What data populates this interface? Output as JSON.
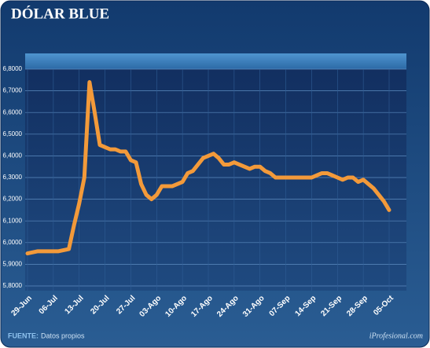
{
  "chart_data": {
    "type": "line",
    "title": "DÓLAR BLUE",
    "categories": [
      "29-Jun",
      null,
      null,
      null,
      null,
      "06-Jul",
      null,
      null,
      null,
      null,
      "13-Jul",
      null,
      null,
      null,
      null,
      "20-Jul",
      null,
      null,
      null,
      null,
      "27-Jul",
      null,
      null,
      null,
      null,
      "03-Ago",
      null,
      null,
      null,
      null,
      "10-Ago",
      null,
      null,
      null,
      null,
      "17-Ago",
      null,
      null,
      null,
      null,
      "24-Ago",
      null,
      null,
      null,
      null,
      "31-Ago",
      null,
      null,
      null,
      null,
      "07-Sep",
      null,
      null,
      null,
      null,
      "14-Sep",
      null,
      null,
      null,
      null,
      "21-Sep",
      null,
      null,
      null,
      null,
      "28-Sep",
      null,
      null,
      null,
      null,
      "05-Oct"
    ],
    "series": [
      {
        "name": "Dólar blue",
        "color": "#f39a3a",
        "values": [
          5.95,
          5.955,
          5.96,
          5.96,
          5.96,
          5.96,
          5.96,
          5.965,
          5.97,
          6.08,
          6.18,
          6.3,
          6.74,
          6.6,
          6.45,
          6.44,
          6.43,
          6.43,
          6.42,
          6.42,
          6.38,
          6.37,
          6.27,
          6.22,
          6.2,
          6.22,
          6.26,
          6.26,
          6.26,
          6.27,
          6.28,
          6.32,
          6.33,
          6.36,
          6.39,
          6.4,
          6.41,
          6.39,
          6.36,
          6.36,
          6.37,
          6.36,
          6.35,
          6.34,
          6.35,
          6.35,
          6.33,
          6.32,
          6.3,
          6.3,
          6.3,
          6.3,
          6.3,
          6.3,
          6.3,
          6.3,
          6.31,
          6.32,
          6.32,
          6.31,
          6.3,
          6.29,
          6.3,
          6.3,
          6.28,
          6.29,
          6.27,
          6.25,
          6.22,
          6.19,
          6.15
        ]
      }
    ],
    "ylim": [
      5.8,
      6.8
    ],
    "yticks": [
      {
        "value": 5.8,
        "label": "5,8000"
      },
      {
        "value": 5.9,
        "label": "5,9000"
      },
      {
        "value": 6.0,
        "label": "6,0000"
      },
      {
        "value": 6.1,
        "label": "6,1000"
      },
      {
        "value": 6.2,
        "label": "6,2000"
      },
      {
        "value": 6.3,
        "label": "6,3000"
      },
      {
        "value": 6.4,
        "label": "6,4000"
      },
      {
        "value": 6.5,
        "label": "6,5000"
      },
      {
        "value": 6.6,
        "label": "6,6000"
      },
      {
        "value": 6.7,
        "label": "6,7000"
      },
      {
        "value": 6.8,
        "label": "6,8000"
      }
    ],
    "grid": true,
    "source_label": "FUENTE:",
    "source": "Datos propios",
    "brand": "iProfesional.com"
  }
}
